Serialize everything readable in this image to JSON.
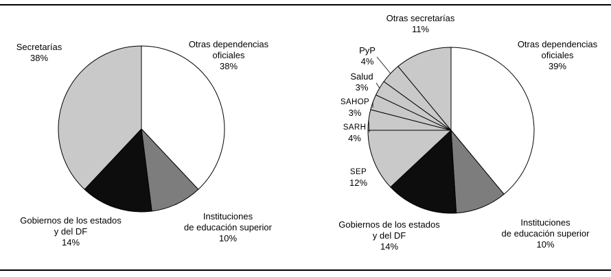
{
  "chart_data": [
    {
      "type": "pie",
      "title": "",
      "direction": "clockwise",
      "start_angle_deg": 0,
      "slices": [
        {
          "label": "Otras dependencias\noficiales",
          "pct_label": "38%",
          "value": 38,
          "color": "#ffffff"
        },
        {
          "label": "Instituciones\nde educación superior",
          "pct_label": "10%",
          "value": 10,
          "color": "#7d7d7d"
        },
        {
          "label": "Gobiernos de los estados\ny del DF",
          "pct_label": "14%",
          "value": 14,
          "color": "#0d0d0d"
        },
        {
          "label": "Secretarías",
          "pct_label": "38%",
          "value": 38,
          "color": "#c9c9c9"
        }
      ]
    },
    {
      "type": "pie",
      "title": "",
      "direction": "clockwise",
      "start_angle_deg": 0,
      "slices": [
        {
          "label": "Otras dependencias\noficiales",
          "pct_label": "39%",
          "value": 39,
          "color": "#ffffff"
        },
        {
          "label": "Instituciones\nde educación superior",
          "pct_label": "10%",
          "value": 10,
          "color": "#7d7d7d"
        },
        {
          "label": "Gobiernos de los estados\ny del DF",
          "pct_label": "14%",
          "value": 14,
          "color": "#0d0d0d"
        },
        {
          "label": "SEP",
          "pct_label": "12%",
          "value": 12,
          "color": "#c9c9c9"
        },
        {
          "label": "SARH",
          "pct_label": "4%",
          "value": 4,
          "color": "#c9c9c9"
        },
        {
          "label": "SAHOP",
          "pct_label": "3%",
          "value": 3,
          "color": "#c9c9c9"
        },
        {
          "label": "Salud",
          "pct_label": "3%",
          "value": 3,
          "color": "#c9c9c9"
        },
        {
          "label": "PyP",
          "pct_label": "4%",
          "value": 4,
          "color": "#c9c9c9"
        },
        {
          "label": "Otras secretarías",
          "pct_label": "11%",
          "value": 11,
          "color": "#c9c9c9"
        }
      ]
    }
  ]
}
